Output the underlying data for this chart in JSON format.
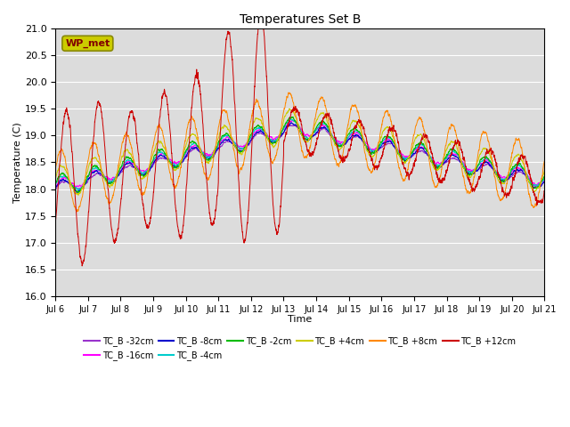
{
  "title": "Temperatures Set B",
  "xlabel": "Time",
  "ylabel": "Temperature (C)",
  "ylim": [
    16.0,
    21.0
  ],
  "yticks": [
    16.0,
    16.5,
    17.0,
    17.5,
    18.0,
    18.5,
    19.0,
    19.5,
    20.0,
    20.5,
    21.0
  ],
  "bg_color": "#dcdcdc",
  "series": [
    {
      "label": "TC_B -32cm",
      "color": "#9933cc"
    },
    {
      "label": "TC_B -16cm",
      "color": "#ff00ff"
    },
    {
      "label": "TC_B -8cm",
      "color": "#0000cc"
    },
    {
      "label": "TC_B -4cm",
      "color": "#00cccc"
    },
    {
      "label": "TC_B -2cm",
      "color": "#00bb00"
    },
    {
      "label": "TC_B +4cm",
      "color": "#cccc00"
    },
    {
      "label": "TC_B +8cm",
      "color": "#ff8800"
    },
    {
      "label": "TC_B +12cm",
      "color": "#cc0000"
    }
  ],
  "wp_met_box_color": "#cccc00",
  "wp_met_text_color": "#800000",
  "annotation_text": "WP_met"
}
